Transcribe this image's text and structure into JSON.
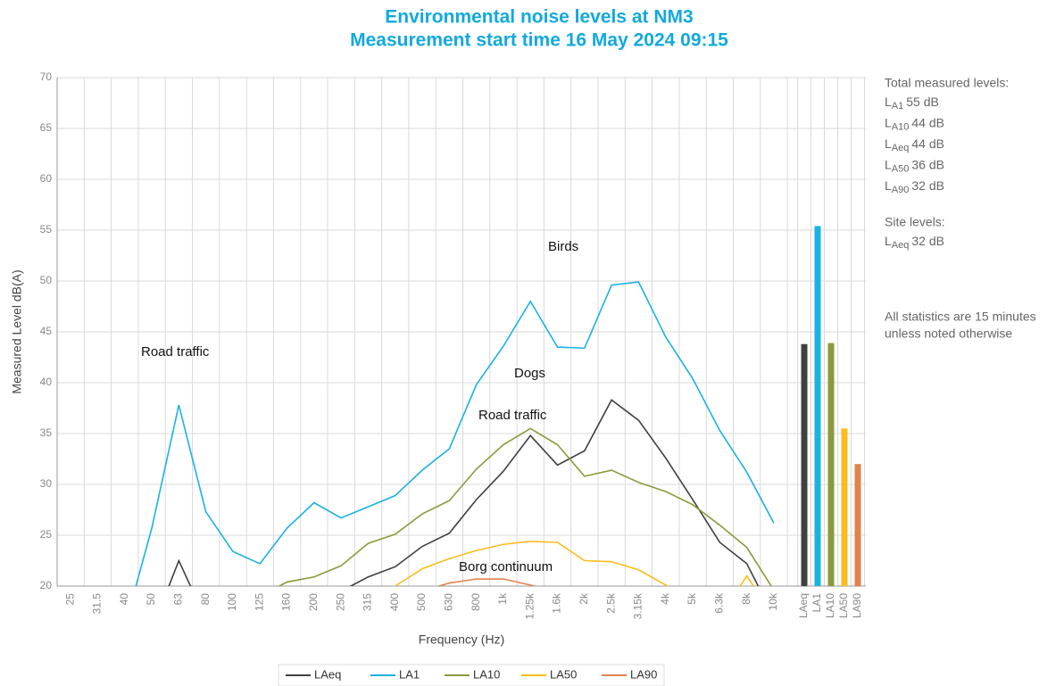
{
  "chart_data": {
    "type": "line",
    "title": [
      "Environmental noise levels at NM3",
      "Measurement start time 16 May 2024 09:15"
    ],
    "x_label": "Frequency (Hz)",
    "y_label": "Measured Level dB(A)",
    "categories": [
      "25",
      "31.5",
      "40",
      "50",
      "63",
      "80",
      "100",
      "125",
      "160",
      "200",
      "250",
      "315",
      "400",
      "500",
      "630",
      "800",
      "1k",
      "1.25k",
      "1.6k",
      "2k",
      "2.5k",
      "3.15k",
      "4k",
      "5k",
      "6.3k",
      "8k",
      "10k"
    ],
    "ylim": [
      20,
      70
    ],
    "yticks": [
      20,
      25,
      30,
      35,
      40,
      45,
      50,
      55,
      60,
      65,
      70
    ],
    "grid": true,
    "series": [
      {
        "name": "LAeq",
        "color": "#404040",
        "values": [
          null,
          null,
          null,
          15.7,
          22.5,
          16.7,
          null,
          null,
          null,
          null,
          19.5,
          20.9,
          21.9,
          23.9,
          25.2,
          28.5,
          31.3,
          34.8,
          31.9,
          33.3,
          38.3,
          36.3,
          32.6,
          28.5,
          24.3,
          22.2,
          17
        ]
      },
      {
        "name": "LA1",
        "color": "#1ab2e0",
        "values": [
          null,
          null,
          16,
          25.7,
          37.8,
          27.3,
          23.4,
          22.2,
          25.7,
          28.2,
          26.7,
          27.8,
          28.9,
          31.4,
          33.5,
          39.8,
          43.6,
          48.0,
          43.5,
          43.4,
          49.6,
          49.9,
          44.5,
          40.4,
          35.3,
          31.2,
          26.2
        ]
      },
      {
        "name": "LA10",
        "color": "#8a9a3c",
        "values": [
          null,
          null,
          null,
          null,
          null,
          null,
          null,
          19.0,
          20.4,
          20.9,
          22.0,
          24.2,
          25.1,
          27.1,
          28.4,
          31.5,
          33.9,
          35.5,
          33.9,
          30.8,
          31.4,
          30.2,
          29.3,
          28.0,
          26.0,
          23.8,
          19.6
        ]
      },
      {
        "name": "LA50",
        "color": "#fbbc1c",
        "values": [
          null,
          null,
          null,
          null,
          null,
          null,
          null,
          null,
          null,
          null,
          null,
          18,
          20.0,
          21.7,
          22.7,
          23.5,
          24.1,
          24.4,
          24.3,
          22.5,
          22.4,
          21.6,
          20.1,
          18.5,
          17,
          21.0,
          17
        ]
      },
      {
        "name": "LA90",
        "color": "#e0824c",
        "values": [
          null,
          null,
          null,
          null,
          null,
          null,
          null,
          null,
          null,
          null,
          null,
          null,
          null,
          19.5,
          20.3,
          20.7,
          20.7,
          20.1,
          19.4,
          null,
          null,
          null,
          null,
          null,
          null,
          null,
          null
        ]
      }
    ],
    "bars": {
      "categories": [
        "LAeq",
        "LA1",
        "LA10",
        "LA50",
        "LA90"
      ],
      "values": [
        43.8,
        55.4,
        43.9,
        35.5,
        32.0
      ],
      "colors": [
        "#404040",
        "#1ab2e0",
        "#8a9a3c",
        "#fbbc1c",
        "#e0824c"
      ]
    },
    "annotations": [
      "Road traffic",
      "Birds",
      "Dogs",
      "Road traffic",
      "Borg continuum"
    ],
    "notes": {
      "total_title": "Total measured levels:",
      "total_items": [
        {
          "symbol": "L",
          "sub": "A1",
          "text": "55 dB"
        },
        {
          "symbol": "L",
          "sub": "A10",
          "text": "44 dB"
        },
        {
          "symbol": "L",
          "sub": "Aeq",
          "text": "44 dB"
        },
        {
          "symbol": "L",
          "sub": "A50",
          "text": "36 dB"
        },
        {
          "symbol": "L",
          "sub": "A90",
          "text": "32 dB"
        }
      ],
      "site_title": "Site levels:",
      "site_items": [
        {
          "symbol": "L",
          "sub": "Aeq",
          "text": "32 dB"
        }
      ],
      "footnote": [
        "All statistics are 15 minutes",
        "unless noted otherwise"
      ]
    }
  }
}
